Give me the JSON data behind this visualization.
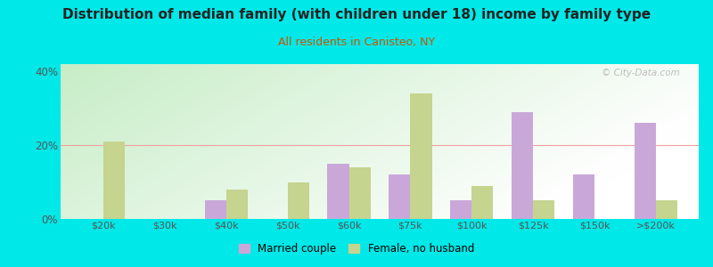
{
  "title": "Distribution of median family (with children under 18) income by family type",
  "subtitle": "All residents in Canisteo, NY",
  "categories": [
    "$20k",
    "$30k",
    "$40k",
    "$50k",
    "$60k",
    "$75k",
    "$100k",
    "$125k",
    "$150k",
    ">$200k"
  ],
  "married_couple": [
    0,
    0,
    5,
    0,
    15,
    12,
    5,
    29,
    12,
    26
  ],
  "female_no_husband": [
    21,
    0,
    8,
    10,
    14,
    34,
    9,
    5,
    0,
    5
  ],
  "married_color": "#c9a8d9",
  "female_color": "#c5d48e",
  "bg_color": "#00e8e8",
  "title_color": "#222222",
  "subtitle_color": "#cc5500",
  "axis_label_color": "#555555",
  "grid_color": "#f0a0a0",
  "ylim": [
    0,
    42
  ],
  "yticks": [
    0,
    20,
    40
  ],
  "ytick_labels": [
    "0%",
    "20%",
    "40%"
  ],
  "watermark": "© City-Data.com",
  "bar_width": 0.35
}
